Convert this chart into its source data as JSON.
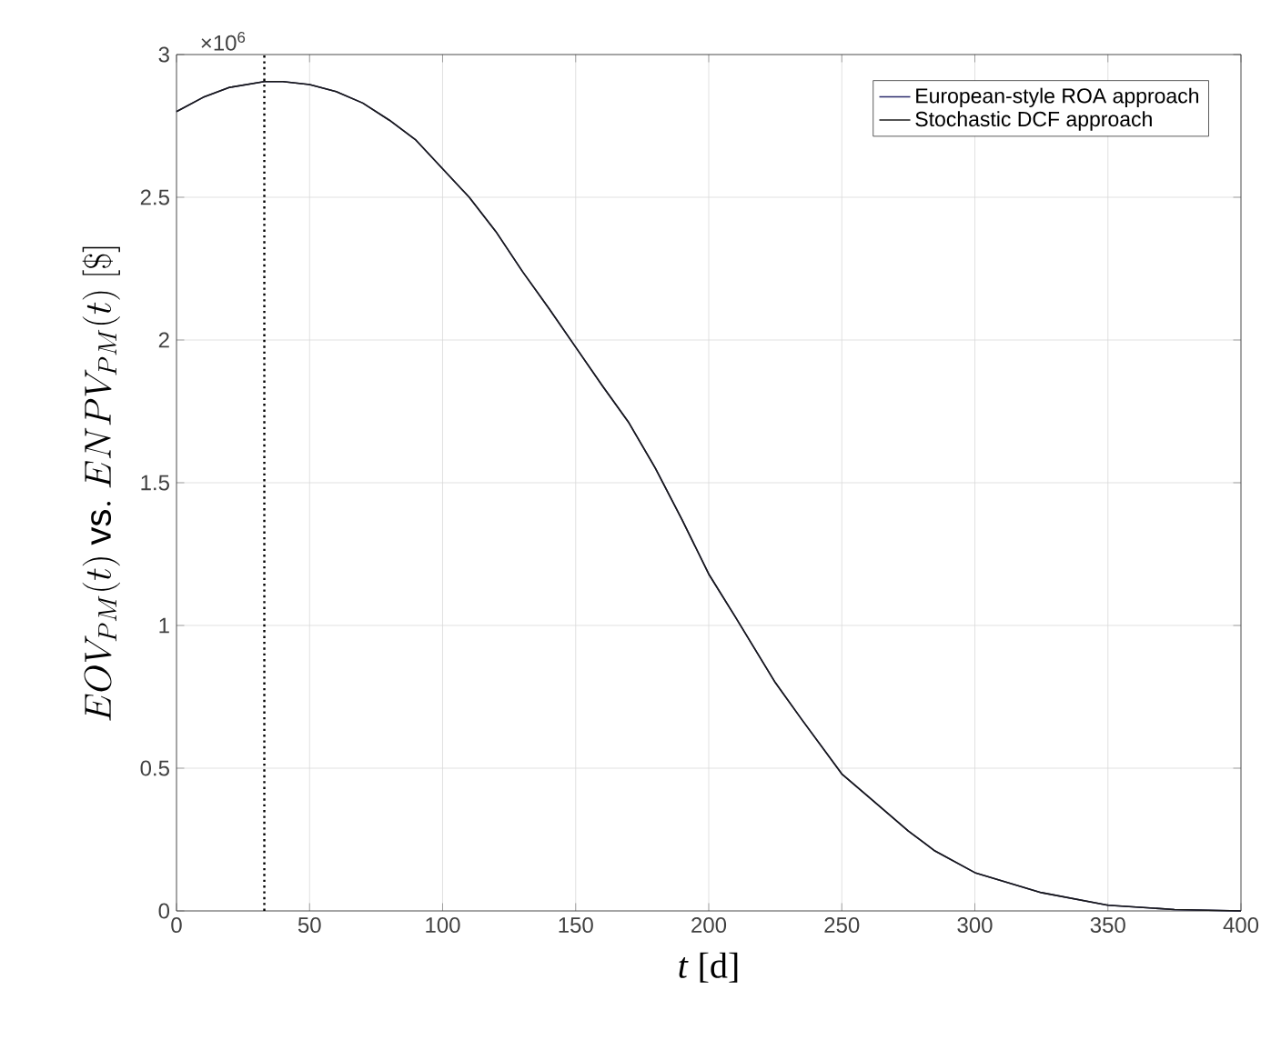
{
  "chart_data": {
    "type": "line",
    "xlabel": "*t* [d]",
    "ylabel": "EOV_{PM}(t)\\ \\mathrm{vs.}\\ ENPV_{PM}(t)\\ [\\$]",
    "x": [
      0,
      10,
      20,
      33,
      40,
      50,
      60,
      70,
      80,
      90,
      100,
      110,
      120,
      130,
      140,
      150,
      160,
      170,
      180,
      190,
      200,
      210,
      225,
      235,
      250,
      260,
      275,
      285,
      300,
      325,
      350,
      375,
      400
    ],
    "series": [
      {
        "name": "European-style ROA approach",
        "color": "#2b2b6b",
        "values": [
          2.8,
          2.85,
          2.885,
          2.905,
          2.905,
          2.895,
          2.87,
          2.83,
          2.77,
          2.7,
          2.6,
          2.5,
          2.38,
          2.24,
          2.11,
          1.975,
          1.84,
          1.71,
          1.55,
          1.37,
          1.18,
          1.03,
          0.8,
          0.67,
          0.48,
          0.4,
          0.28,
          0.21,
          0.134,
          0.064,
          0.02,
          0.005,
          0
        ]
      },
      {
        "name": "Stochastic DCF approach",
        "color": "#1a1a1a",
        "values": [
          2.8,
          2.85,
          2.885,
          2.905,
          2.905,
          2.895,
          2.87,
          2.83,
          2.77,
          2.7,
          2.6,
          2.5,
          2.38,
          2.24,
          2.11,
          1.975,
          1.84,
          1.71,
          1.55,
          1.37,
          1.18,
          1.03,
          0.8,
          0.67,
          0.48,
          0.4,
          0.28,
          0.21,
          0.134,
          0.064,
          0.02,
          0.005,
          0
        ]
      }
    ],
    "xlim": [
      0,
      400
    ],
    "ylim": [
      0,
      3
    ],
    "xticks": [
      0,
      50,
      100,
      150,
      200,
      250,
      300,
      350,
      400
    ],
    "yticks": [
      0,
      0.5,
      1,
      1.5,
      2,
      2.5,
      3
    ],
    "annotations": [
      "×10$^{6}$"
    ],
    "ref_lines": [
      {
        "axis": "x",
        "value": 33,
        "color": "#000000",
        "line_style": "dotted"
      }
    ],
    "grid": true,
    "legend": "top right"
  }
}
